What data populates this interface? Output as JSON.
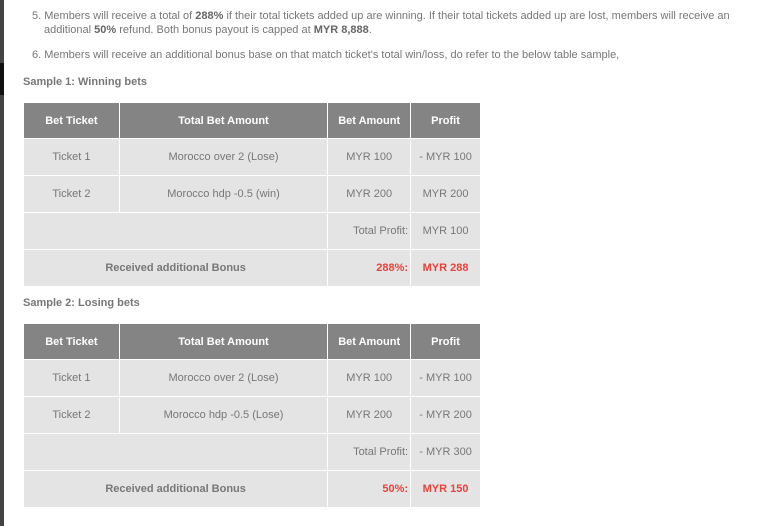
{
  "rules": {
    "r5": {
      "num": "5.",
      "p1": "Members will receive a total of ",
      "b1": "288%",
      "p2": " if their total tickets added up are winning. If their total tickets added up are lost, members will receive an",
      "p3": "additional ",
      "b2": "50%",
      "p4": " refund. Both bonus payout is capped at ",
      "b3": "MYR 8,888",
      "p5": "."
    },
    "r6": "6. Members will receive an additional bonus base on that match ticket's total win/loss, do refer to the below table sample,"
  },
  "headers": [
    "Bet Ticket",
    "Total Bet Amount",
    "Bet Amount",
    "Profit"
  ],
  "samples": [
    {
      "title": "Sample 1: Winning bets",
      "rows": [
        [
          "Ticket 1",
          "Morocco over 2 (Lose)",
          "MYR 100",
          "- MYR 100"
        ],
        [
          "Ticket 2",
          "Morocco hdp -0.5 (win)",
          "MYR 200",
          "MYR 200"
        ]
      ],
      "total_label": "Total Profit:",
      "total_value": "MYR 100",
      "bonus_label": "Received additional Bonus",
      "bonus_pct": "288%:",
      "bonus_value": "MYR 288"
    },
    {
      "title": "Sample 2: Losing bets",
      "rows": [
        [
          "Ticket 1",
          "Morocco over 2 (Lose)",
          "MYR 100",
          "- MYR 100"
        ],
        [
          "Ticket 2",
          "Morocco hdp -0.5 (Lose)",
          "MYR 200",
          "- MYR 200"
        ]
      ],
      "total_label": "Total Profit:",
      "total_value": "- MYR 300",
      "bonus_label": "Received additional Bonus",
      "bonus_pct": "50%:",
      "bonus_value": "MYR 150"
    }
  ],
  "colors": {
    "header_bg": "#848484",
    "cell_bg": "#e4e4e4",
    "accent_red": "#e9423a"
  }
}
